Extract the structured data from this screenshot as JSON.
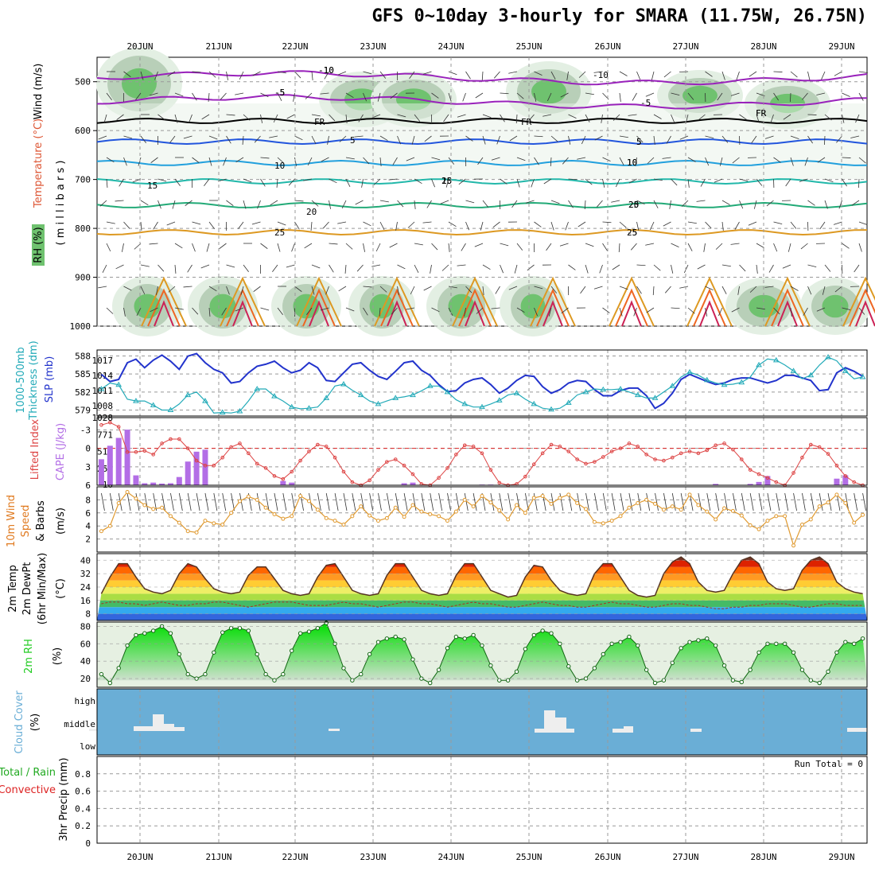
{
  "title": "GFS 0~10day 3-hourly for SMARA (11.75W, 26.75N)",
  "colors": {
    "rh": "#6fc26f",
    "temp_warm": "#e0a020",
    "temp_cold": "#1f4fcf",
    "slp": "#2233cc",
    "thickness": "#22aab8",
    "lifted": "#dd4444",
    "cape": "#b36ee6",
    "wind": "#e09a30",
    "rh2m": "#22cc22",
    "cloud_bg": "#6aaed6"
  },
  "chart_data": [
    {
      "type": "heatmap",
      "name": "upper",
      "ylabel_parts": [
        "Wind (m/s)",
        "Temperature (°C)",
        "RH (%)",
        "( m i l l i b a r s )"
      ],
      "yticks": [
        500,
        600,
        700,
        800,
        900,
        1000
      ],
      "x_date_labels": [
        "20JUN",
        "21JUN",
        "22JUN",
        "23JUN",
        "24JUN",
        "25JUN",
        "26JUN",
        "27JUN",
        "28JUN",
        "29JUN"
      ],
      "temp_contour_labels": [
        "-10",
        "-5",
        "FR",
        "5",
        "10",
        "15",
        "20",
        "25",
        "-10",
        "-5",
        "FR",
        "5",
        "10",
        "15",
        "20",
        "25",
        "-10",
        "-5",
        "FR",
        "5",
        "10",
        "20",
        "25",
        "-5",
        "FR"
      ]
    },
    {
      "type": "line",
      "name": "slp-thickness",
      "ylabel_parts": [
        "SLP (mb)",
        "1000-500mb",
        "Thickness (dm)"
      ],
      "yticks_left": [
        "579",
        "582",
        "585",
        "588"
      ],
      "yticks_right": [
        "1008",
        "1011",
        "1014",
        "1017"
      ],
      "series": [
        {
          "name": "SLP",
          "values": [
            1014.2,
            1012.8,
            1013.2,
            1016.5,
            1017.2,
            1015.5,
            1017.0,
            1018.0,
            1016.8,
            1015.2,
            1017.8,
            1018.3,
            1016.5,
            1015.2,
            1014.5,
            1012.5,
            1012.8,
            1014.5,
            1015.8,
            1016.2,
            1016.8,
            1015.5,
            1014.5,
            1015.0,
            1016.5,
            1015.5,
            1013.0,
            1012.8,
            1014.5,
            1016.2,
            1016.5,
            1015.0,
            1013.8,
            1013.2,
            1014.8,
            1016.5,
            1016.8,
            1015.0,
            1014.0,
            1012.2,
            1010.8,
            1011.0,
            1012.5,
            1013.2,
            1013.5,
            1012.2,
            1010.5,
            1011.5,
            1013.0,
            1014.0,
            1013.8,
            1011.8,
            1010.5,
            1011.2,
            1012.5,
            1013.0,
            1012.8,
            1011.2,
            1010.0,
            1010.0,
            1011.0,
            1011.5,
            1011.5,
            1010.0,
            1007.5,
            1008.5,
            1010.5,
            1013.2,
            1014.2,
            1013.5,
            1012.8,
            1012.2,
            1012.5,
            1013.2,
            1013.5,
            1013.5,
            1013.0,
            1012.5,
            1013.0,
            1014.0,
            1014.0,
            1013.5,
            1013.0,
            1011.0,
            1011.2,
            1014.5,
            1015.5,
            1014.8,
            1013.8
          ]
        },
        {
          "name": "Thickness",
          "values": [
            582.5,
            583.5,
            583.2,
            580.8,
            580.5,
            580.5,
            579.8,
            579.0,
            579.0,
            580.0,
            581.5,
            582.0,
            580.5,
            578.5,
            578.6,
            578.5,
            578.8,
            580.5,
            582.5,
            582.5,
            581.3,
            580.5,
            579.5,
            579.2,
            579.3,
            579.5,
            581.0,
            583.0,
            583.3,
            582.3,
            581.5,
            580.5,
            580.0,
            580.5,
            581.0,
            581.2,
            581.5,
            582.2,
            583.0,
            583.0,
            582.0,
            580.7,
            580.0,
            579.5,
            579.5,
            580.0,
            580.6,
            581.5,
            581.8,
            580.8,
            580.0,
            579.3,
            579.1,
            579.3,
            580.2,
            581.5,
            582.0,
            582.5,
            582.4,
            582.4,
            582.5,
            582.0,
            581.5,
            581.0,
            581.0,
            582.0,
            583.0,
            584.5,
            585.3,
            584.8,
            584.0,
            583.5,
            583.2,
            583.3,
            583.6,
            584.5,
            586.5,
            587.5,
            587.3,
            586.5,
            585.5,
            584.2,
            584.8,
            586.5,
            587.8,
            587.2,
            585.5,
            584.2,
            584.5
          ]
        }
      ]
    },
    {
      "type": "bar",
      "name": "lifted-cape",
      "ylabel_parts": [
        "Lifted Index",
        "CAPE (J/kg)"
      ],
      "yticks_left": [
        "-3",
        "0",
        "3",
        "6"
      ],
      "yticks_right": [
        "10",
        "257",
        "514",
        "771",
        "1028"
      ],
      "series": [
        {
          "name": "Lifted Index",
          "values": [
            -3.8,
            -4.2,
            -3.5,
            0.6,
            0.6,
            0.4,
            1.0,
            -0.8,
            -1.5,
            -1.5,
            0.0,
            2.0,
            2.8,
            2.8,
            1.5,
            -0.2,
            -0.8,
            0.8,
            2.5,
            3.2,
            4.5,
            5.0,
            3.8,
            2.0,
            0.5,
            -0.6,
            -0.3,
            1.5,
            3.8,
            5.5,
            6.0,
            5.2,
            3.5,
            2.2,
            1.8,
            2.8,
            4.2,
            5.8,
            6.0,
            4.8,
            3.2,
            1.0,
            -0.5,
            -0.3,
            0.8,
            3.5,
            5.6,
            6.0,
            5.8,
            4.6,
            2.6,
            0.8,
            -0.6,
            -0.3,
            0.5,
            1.8,
            2.5,
            2.2,
            1.4,
            0.5,
            0.0,
            -0.8,
            -0.3,
            1.0,
            1.8,
            2.0,
            1.5,
            0.8,
            0.5,
            0.8,
            0.3,
            -0.5,
            -0.8,
            0.2,
            1.8,
            3.5,
            4.2,
            4.8,
            5.5,
            6.0,
            4.0,
            1.5,
            -0.6,
            -0.2,
            0.9,
            2.8,
            4.5,
            5.5,
            6.0
          ]
        },
        {
          "name": "CAPE",
          "values": [
            395,
            600,
            720,
            845,
            150,
            30,
            40,
            25,
            30,
            125,
            360,
            510,
            540,
            0,
            0,
            0,
            0,
            0,
            0,
            0,
            0,
            65,
            40,
            0,
            0,
            0,
            0,
            0,
            0,
            0,
            0,
            0,
            0,
            0,
            0,
            30,
            40,
            0,
            0,
            0,
            0,
            0,
            0,
            0,
            10,
            10,
            0,
            0,
            0,
            0,
            0,
            0,
            0,
            0,
            0,
            0,
            0,
            0,
            0,
            0,
            0,
            0,
            0,
            0,
            0,
            0,
            0,
            0,
            0,
            0,
            0,
            20,
            0,
            0,
            0,
            20,
            50,
            140,
            0,
            0,
            0,
            0,
            0,
            0,
            0,
            100,
            150,
            0,
            0
          ]
        }
      ]
    },
    {
      "type": "line",
      "name": "wind10m",
      "ylabel_parts": [
        "10m Wind",
        "Speed",
        "& Barbs",
        "(m/s)"
      ],
      "yticks": [
        "2",
        "4",
        "6",
        "8"
      ],
      "values": [
        3.2,
        4.0,
        7.5,
        9.2,
        8.2,
        7.2,
        6.6,
        6.8,
        5.5,
        4.5,
        3.2,
        3.0,
        4.8,
        4.4,
        4.2,
        6.0,
        7.8,
        8.5,
        8.0,
        6.8,
        5.8,
        5.1,
        5.5,
        8.6,
        7.8,
        6.5,
        5.2,
        4.8,
        4.2,
        5.5,
        7.0,
        5.6,
        4.8,
        5.2,
        6.8,
        5.4,
        7.2,
        6.2,
        5.8,
        5.5,
        4.8,
        6.2,
        8.0,
        7.0,
        8.6,
        7.6,
        6.4,
        5.0,
        7.2,
        6.0,
        8.3,
        8.6,
        7.4,
        8.3,
        8.8,
        7.5,
        6.6,
        4.6,
        4.4,
        4.8,
        5.5,
        6.8,
        7.5,
        8.0,
        7.4,
        6.5,
        7.0,
        6.5,
        8.8,
        7.2,
        6.2,
        5.0,
        6.7,
        6.3,
        5.6,
        4.1,
        3.5,
        4.8,
        5.5,
        5.5,
        1.0,
        4.2,
        5.0,
        7.0,
        7.6,
        8.8,
        7.5,
        4.5,
        5.7
      ]
    },
    {
      "type": "area",
      "name": "temp2m",
      "ylabel_parts": [
        "2m Temp",
        "2m DewPt",
        "(6hr Min/Max)",
        "(°C)"
      ],
      "yticks": [
        "8",
        "16",
        "24",
        "32",
        "40"
      ],
      "series": [
        {
          "name": "Temp",
          "values": [
            20,
            30,
            38,
            38,
            30,
            23,
            21,
            20,
            22,
            32,
            38,
            36,
            29,
            23,
            21,
            20,
            21,
            31,
            36,
            36,
            29,
            22,
            20,
            19,
            20,
            30,
            37,
            38,
            30,
            22,
            20,
            19,
            20,
            31,
            38,
            38,
            30,
            22,
            20,
            19,
            20,
            31,
            38,
            38,
            30,
            22,
            20,
            18,
            19,
            30,
            37,
            36,
            28,
            22,
            20,
            19,
            20,
            32,
            38,
            38,
            30,
            22,
            19,
            18,
            19,
            32,
            39,
            42,
            38,
            27,
            22,
            21,
            22,
            32,
            40,
            42,
            38,
            27,
            23,
            22,
            23,
            34,
            40,
            42,
            38,
            27,
            23,
            21,
            20
          ]
        },
        {
          "name": "DewPt",
          "values": [
            14,
            15,
            15,
            14,
            14,
            13,
            14,
            15,
            14,
            13,
            13,
            14,
            14,
            15,
            15,
            14,
            13,
            12,
            13,
            14,
            15,
            15,
            15,
            14,
            13,
            13,
            13,
            14,
            15,
            14,
            14,
            13,
            12,
            13,
            14,
            15,
            15,
            14,
            14,
            13,
            12,
            13,
            14,
            15,
            14,
            14,
            13,
            12,
            12,
            13,
            14,
            15,
            14,
            13,
            13,
            12,
            12,
            13,
            14,
            15,
            14,
            14,
            13,
            12,
            12,
            13,
            14,
            14,
            13,
            13,
            12,
            11,
            11,
            12,
            12,
            13,
            13,
            14,
            14,
            14,
            13,
            12,
            12,
            13,
            14,
            14,
            13,
            13,
            13
          ]
        }
      ]
    },
    {
      "type": "area",
      "name": "rh2m",
      "ylabel_parts": [
        "2m RH",
        "(%)"
      ],
      "yticks": [
        "20",
        "40",
        "60",
        "80"
      ],
      "values": [
        25,
        15,
        32,
        58,
        70,
        72,
        75,
        80,
        72,
        48,
        25,
        20,
        25,
        50,
        73,
        78,
        78,
        75,
        48,
        25,
        18,
        25,
        52,
        72,
        74,
        78,
        84,
        60,
        32,
        18,
        25,
        48,
        62,
        66,
        68,
        65,
        42,
        20,
        15,
        30,
        55,
        68,
        66,
        70,
        58,
        35,
        18,
        18,
        28,
        54,
        70,
        75,
        72,
        60,
        34,
        18,
        20,
        32,
        48,
        60,
        62,
        68,
        58,
        30,
        15,
        18,
        38,
        55,
        62,
        64,
        66,
        58,
        35,
        18,
        16,
        30,
        50,
        60,
        60,
        60,
        50,
        30,
        18,
        15,
        28,
        50,
        62,
        60,
        66
      ]
    },
    {
      "type": "bar",
      "name": "cloud",
      "ylabel_parts": [
        "Cloud Cover",
        "(%)"
      ],
      "ytick_labels": [
        "high",
        "middle",
        "low"
      ]
    },
    {
      "type": "line",
      "name": "precip",
      "ylabel_parts": [
        "Total / Rain",
        "Convective",
        "3hr Precip (mm)"
      ],
      "yticks": [
        "0",
        "0.2",
        "0.4",
        "0.6",
        "0.8"
      ],
      "run_total": "Run Total = 0"
    }
  ]
}
